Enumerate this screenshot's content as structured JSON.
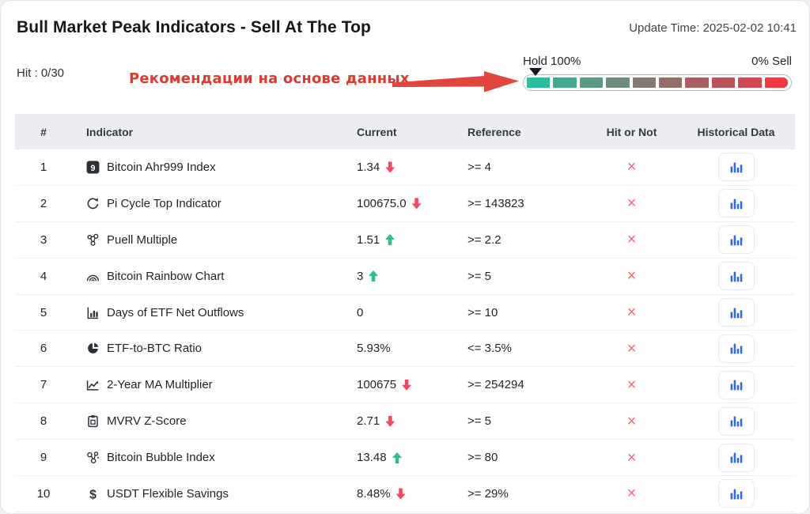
{
  "header": {
    "title": "Bull Market Peak Indicators - Sell At The Top",
    "update_time": "Update Time: 2025-02-02 10:41"
  },
  "summary": {
    "hit_label": "Hit : 0/30",
    "annotation": "Рекомендации на основе данных"
  },
  "gauge": {
    "left_label": "Hold 100%",
    "right_label": "0% Sell",
    "marker_segment_index": 0,
    "segment_colors": [
      "#2abda0",
      "#45a892",
      "#599a86",
      "#6e8c7b",
      "#847a70",
      "#976b68",
      "#a95f61",
      "#bb535a",
      "#d14851",
      "#ee3b43"
    ]
  },
  "table": {
    "columns": [
      "#",
      "Indicator",
      "Current",
      "Reference",
      "Hit or Not",
      "Historical Data"
    ],
    "rows": [
      {
        "num": "1",
        "icon": "icon-ahr999",
        "indicator": "Bitcoin Ahr999 Index",
        "current": "1.34",
        "trend": "down",
        "reference": ">= 4",
        "hit": "×"
      },
      {
        "num": "2",
        "icon": "icon-pi-cycle",
        "indicator": "Pi Cycle Top Indicator",
        "current": "100675.0",
        "trend": "down",
        "reference": ">= 143823",
        "hit": "×"
      },
      {
        "num": "3",
        "icon": "icon-puell",
        "indicator": "Puell Multiple",
        "current": "1.51",
        "trend": "up",
        "reference": ">= 2.2",
        "hit": "×"
      },
      {
        "num": "4",
        "icon": "icon-rainbow",
        "indicator": "Bitcoin Rainbow Chart",
        "current": "3",
        "trend": "up",
        "reference": ">= 5",
        "hit": "×"
      },
      {
        "num": "5",
        "icon": "icon-etf-days",
        "indicator": "Days of ETF Net Outflows",
        "current": "0",
        "trend": null,
        "reference": ">= 10",
        "hit": "×"
      },
      {
        "num": "6",
        "icon": "icon-etf-ratio",
        "indicator": "ETF-to-BTC Ratio",
        "current": "5.93%",
        "trend": null,
        "reference": "<= 3.5%",
        "hit": "×"
      },
      {
        "num": "7",
        "icon": "icon-ma-multiplier",
        "indicator": "2-Year MA Multiplier",
        "current": "100675",
        "trend": "down",
        "reference": ">= 254294",
        "hit": "×"
      },
      {
        "num": "8",
        "icon": "icon-mvrv",
        "indicator": "MVRV Z-Score",
        "current": "2.71",
        "trend": "down",
        "reference": ">= 5",
        "hit": "×"
      },
      {
        "num": "9",
        "icon": "icon-bubble",
        "indicator": "Bitcoin Bubble Index",
        "current": "13.48",
        "trend": "up",
        "reference": ">= 80",
        "hit": "×"
      },
      {
        "num": "10",
        "icon": "icon-usdt",
        "indicator": "USDT Flexible Savings",
        "current": "8.48%",
        "trend": "down",
        "reference": ">= 29%",
        "hit": "×"
      }
    ]
  },
  "colors": {
    "trend_up": "#2ebd85",
    "trend_down": "#f6465d",
    "hit_x": "#f66a6a",
    "hist_icon_blue": "#2a6be5",
    "annotation_red": "#e03a30"
  }
}
